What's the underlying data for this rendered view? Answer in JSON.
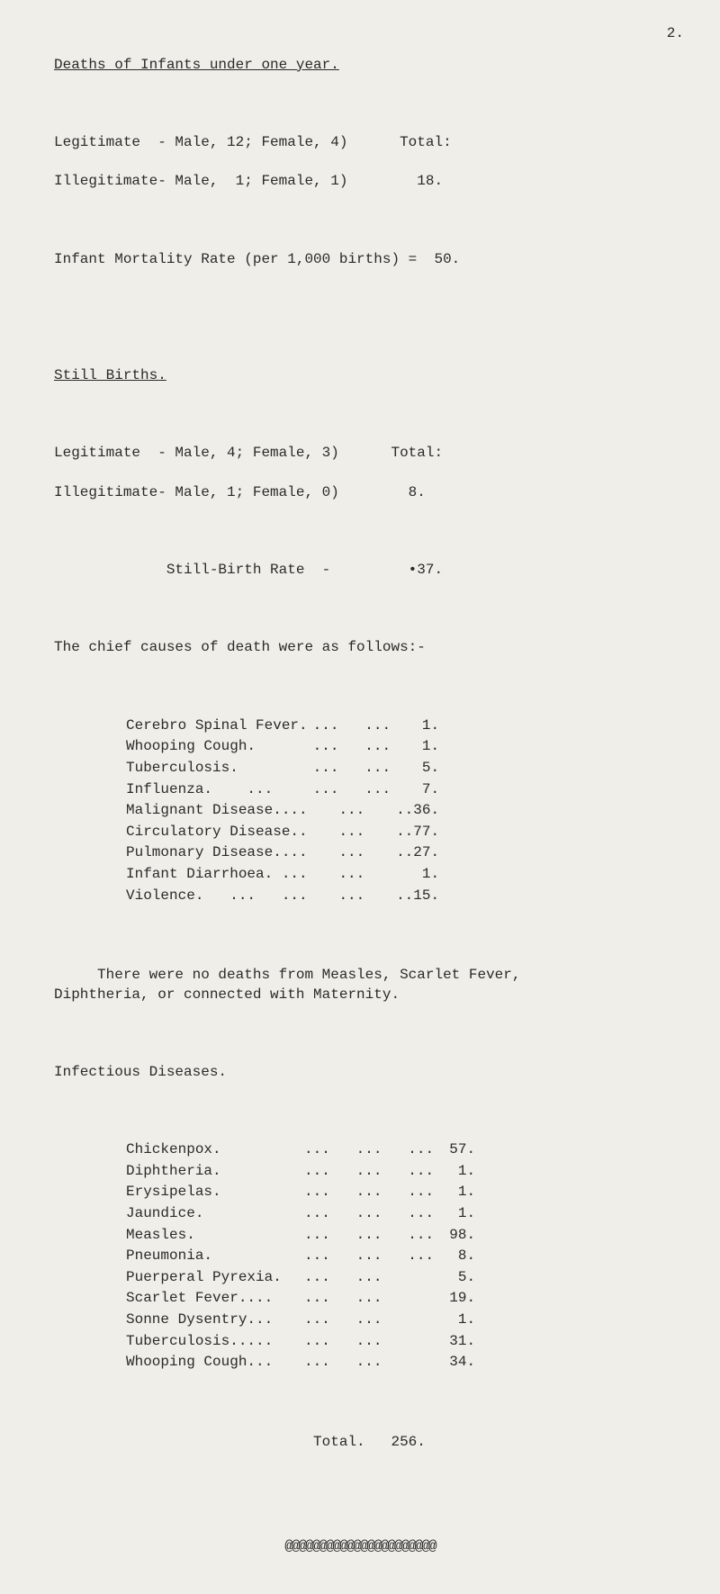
{
  "pageNumber": "2.",
  "heading1": "Deaths of Infants under one year.",
  "leg_line1": "Legitimate  - Male, 12; Female, 4)      Total:",
  "leg_line2": "Illegitimate- Male,  1; Female, 1)        18.",
  "mortality_line": "Infant Mortality Rate (per 1,000 births) =  50.",
  "heading2": "Still Births.",
  "still_line1": "Legitimate  - Male, 4; Female, 3)      Total:",
  "still_line2": "Illegitimate- Male, 1; Female, 0)        8.",
  "still_rate": "             Still-Birth Rate  -         •37.",
  "chief_causes": "The chief causes of death were as follows:-",
  "causes": [
    {
      "label": "Cerebro Spinal Fever.",
      "d": "...   ...",
      "v": "1."
    },
    {
      "label": "Whooping Cough.      ",
      "d": "...   ...",
      "v": "1."
    },
    {
      "label": "Tuberculosis.        ",
      "d": "...   ...",
      "v": "5."
    },
    {
      "label": "Influenza.    ...    ",
      "d": "...   ...",
      "v": "7."
    },
    {
      "label": "Malignant Disease....",
      "d": "   ...",
      "v": "..36."
    },
    {
      "label": "Circulatory Disease..",
      "d": "   ...",
      "v": "..77."
    },
    {
      "label": "Pulmonary Disease....",
      "d": "   ...",
      "v": "..27."
    },
    {
      "label": "Infant Diarrhoea. ...",
      "d": "   ...",
      "v": "1."
    },
    {
      "label": "Violence.   ...   ...",
      "d": "   ...",
      "v": "..15."
    }
  ],
  "there_were": "     There were no deaths from Measles, Scarlet Fever,\nDiphtheria, or connected with Maternity.",
  "heading3": "Infectious Diseases.",
  "diseases": [
    {
      "label": "Chickenpox.         ",
      "d": "...   ...   ...",
      "v": "57."
    },
    {
      "label": "Diphtheria.         ",
      "d": "...   ...   ...",
      "v": "1."
    },
    {
      "label": "Erysipelas.         ",
      "d": "...   ...   ...",
      "v": "1."
    },
    {
      "label": "Jaundice.           ",
      "d": "...   ...   ...",
      "v": "1."
    },
    {
      "label": "Measles.            ",
      "d": "...   ...   ...",
      "v": "98."
    },
    {
      "label": "Pneumonia.          ",
      "d": "...   ...   ...",
      "v": "8."
    },
    {
      "label": "Puerperal Pyrexia.  ",
      "d": "...   ...",
      "v": "5."
    },
    {
      "label": "Scarlet Fever....   ",
      "d": "...   ...",
      "v": "19."
    },
    {
      "label": "Sonne Dysentry...   ",
      "d": "...   ...",
      "v": "1."
    },
    {
      "label": "Tuberculosis.....   ",
      "d": "...   ...",
      "v": "31."
    },
    {
      "label": "Whooping Cough...   ",
      "d": "...   ...",
      "v": "34."
    }
  ],
  "total_label": "Total.",
  "total_value": "256.",
  "footer": "@@@@@@@@@@@@@@@@@@@@@@"
}
